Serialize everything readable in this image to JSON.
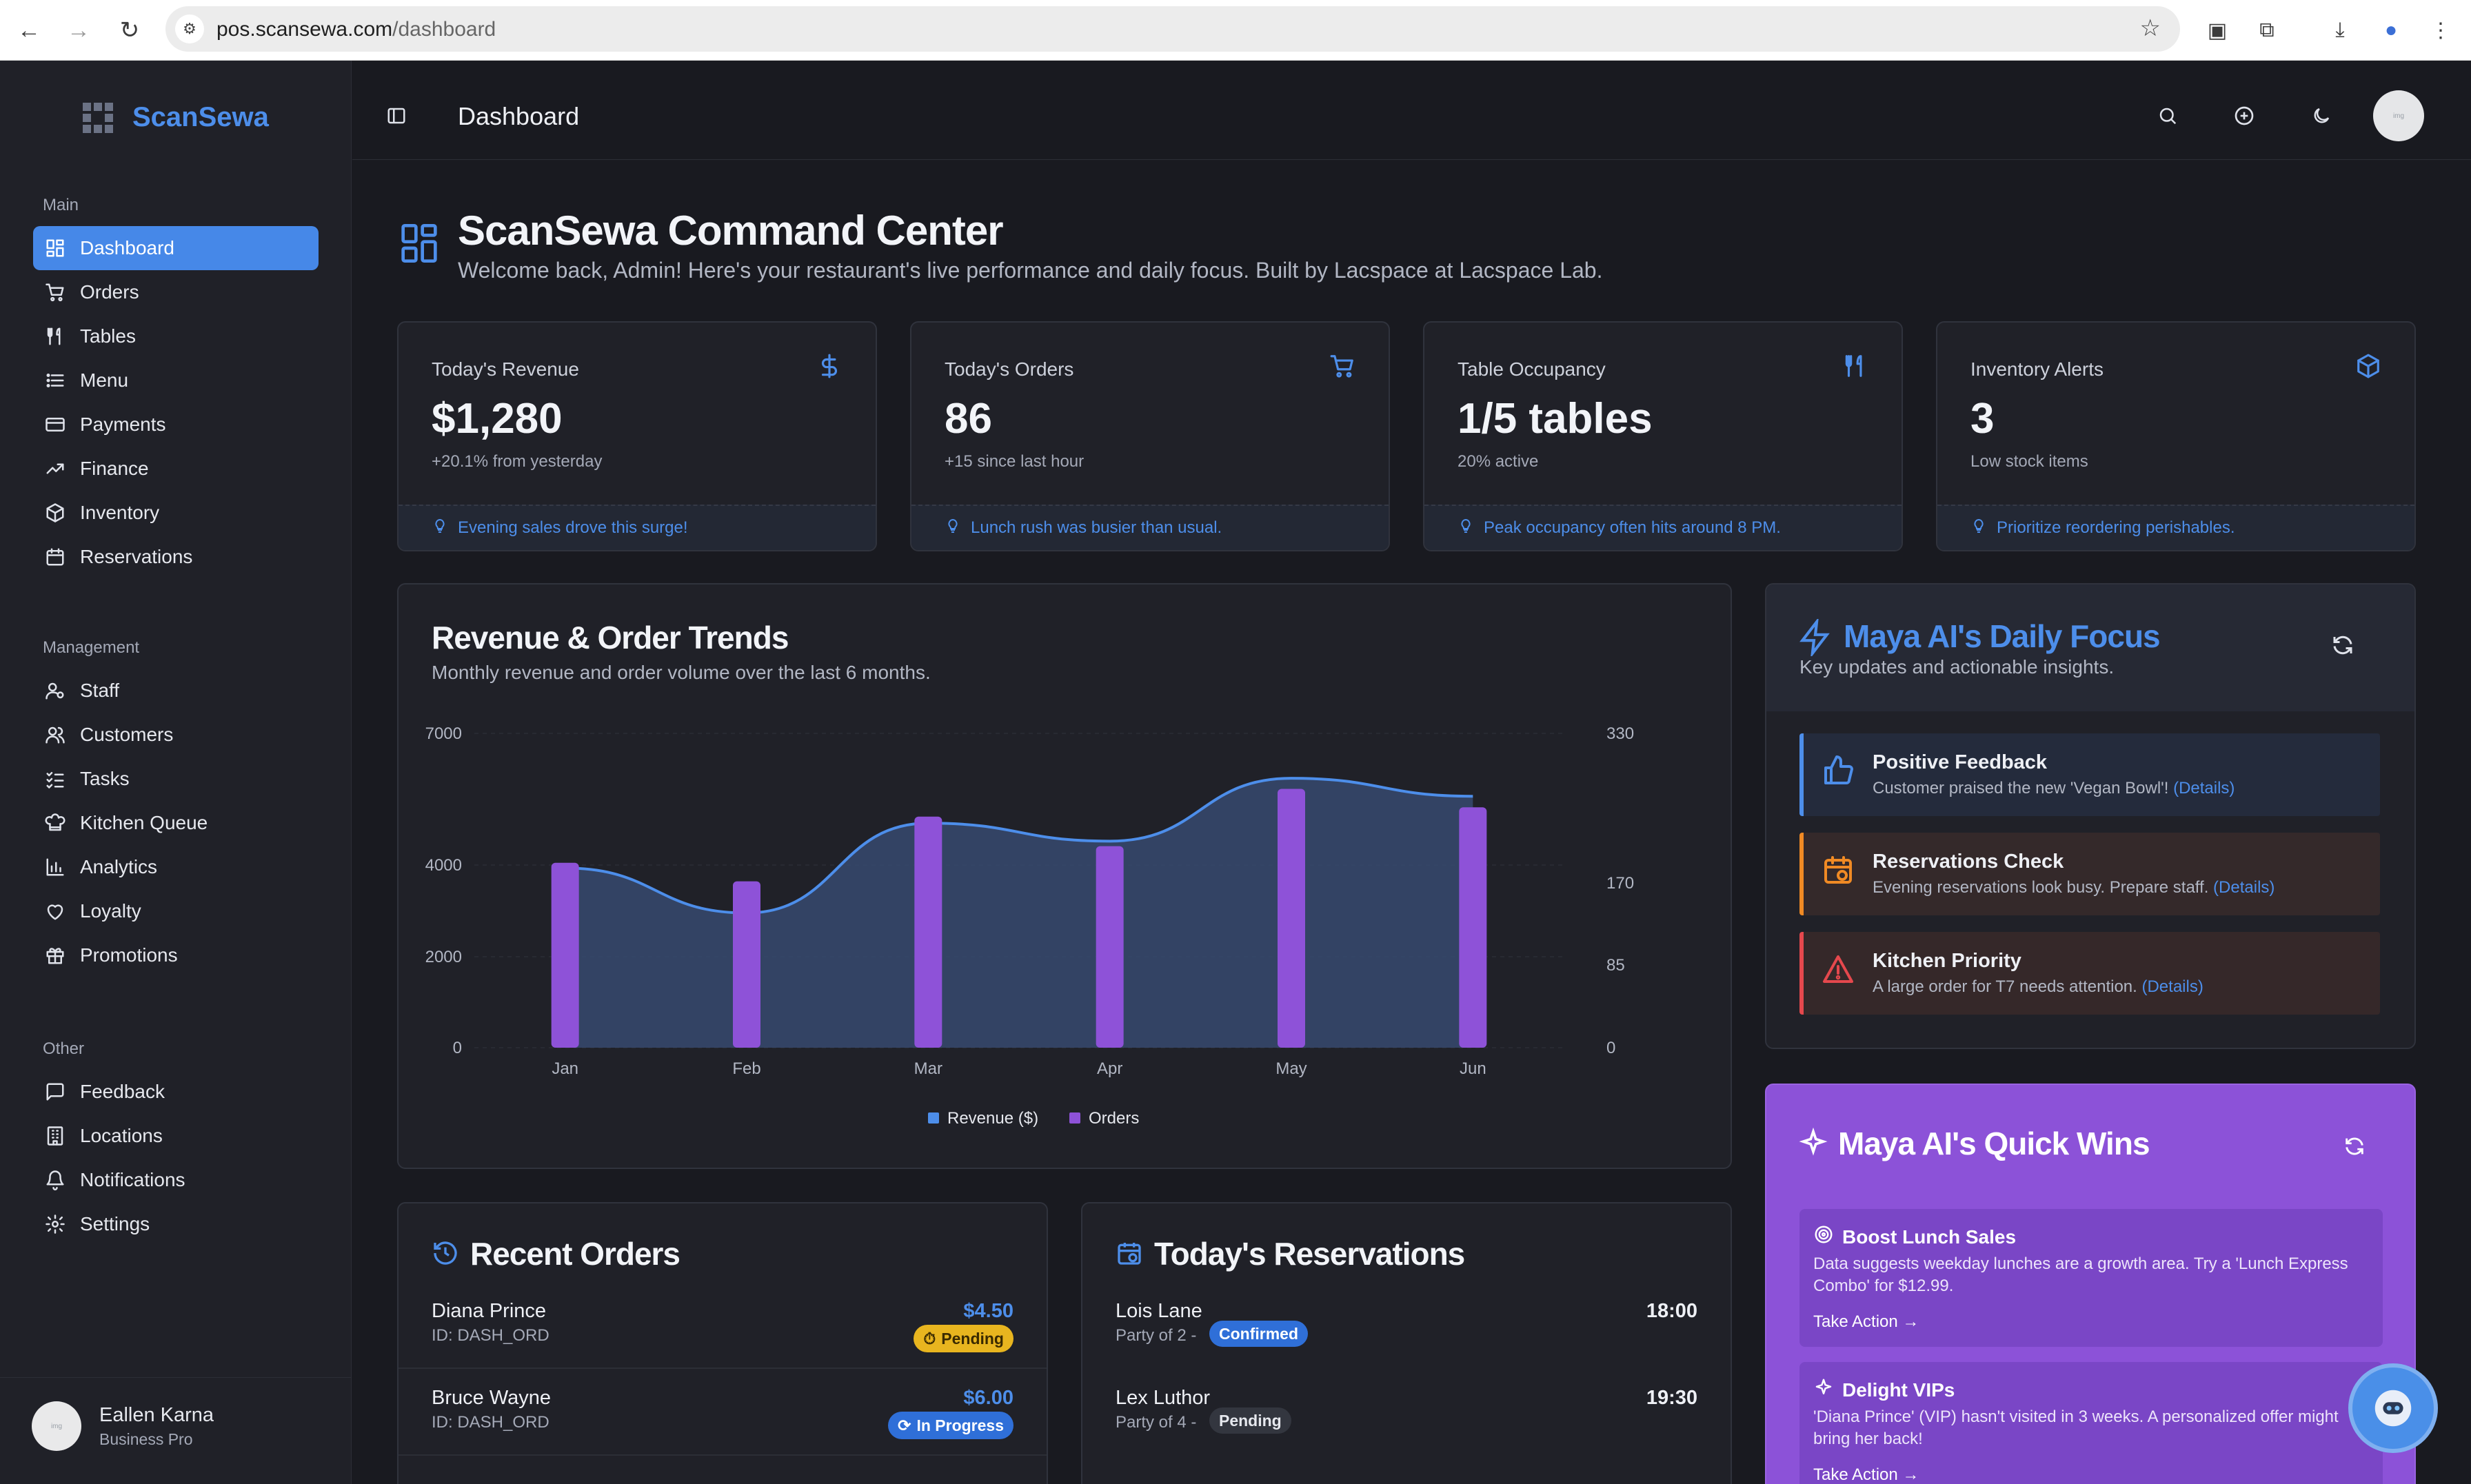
{
  "browser": {
    "url_host": "pos.scansewa.com",
    "url_path": "/dashboard"
  },
  "brand": {
    "name": "ScanSewa"
  },
  "sidebar": {
    "sections": [
      {
        "title": "Main",
        "items": [
          {
            "label": "Dashboard",
            "icon": "grid-icon"
          },
          {
            "label": "Orders",
            "icon": "cart-icon"
          },
          {
            "label": "Tables",
            "icon": "utensils-icon"
          },
          {
            "label": "Menu",
            "icon": "list-icon"
          },
          {
            "label": "Payments",
            "icon": "credit-card-icon"
          },
          {
            "label": "Finance",
            "icon": "trending-up-icon"
          },
          {
            "label": "Inventory",
            "icon": "box-icon"
          },
          {
            "label": "Reservations",
            "icon": "calendar-icon"
          }
        ]
      },
      {
        "title": "Management",
        "items": [
          {
            "label": "Staff",
            "icon": "user-cog-icon"
          },
          {
            "label": "Customers",
            "icon": "users-icon"
          },
          {
            "label": "Tasks",
            "icon": "checklist-icon"
          },
          {
            "label": "Kitchen Queue",
            "icon": "chef-hat-icon"
          },
          {
            "label": "Analytics",
            "icon": "bar-chart-icon"
          },
          {
            "label": "Loyalty",
            "icon": "heart-icon"
          },
          {
            "label": "Promotions",
            "icon": "gift-icon"
          }
        ]
      },
      {
        "title": "Other",
        "items": [
          {
            "label": "Feedback",
            "icon": "message-icon"
          },
          {
            "label": "Locations",
            "icon": "building-icon"
          },
          {
            "label": "Notifications",
            "icon": "bell-icon"
          },
          {
            "label": "Settings",
            "icon": "gear-icon"
          }
        ]
      }
    ],
    "profile": {
      "name": "Eallen Karna",
      "role": "Business Pro"
    }
  },
  "header": {
    "title": "Dashboard"
  },
  "hero": {
    "title": "ScanSewa Command Center",
    "subtitle": "Welcome back, Admin! Here's your restaurant's live performance and daily focus. Built by Lacspace at Lacspace Lab."
  },
  "kpis": [
    {
      "label": "Today's Revenue",
      "value": "$1,280",
      "change": "+20.1% from yesterday",
      "tip": "Evening sales drove this surge!",
      "icon": "dollar-icon"
    },
    {
      "label": "Today's Orders",
      "value": "86",
      "change": "+15 since last hour",
      "tip": "Lunch rush was busier than usual.",
      "icon": "cart-icon"
    },
    {
      "label": "Table Occupancy",
      "value": "1/5 tables",
      "change": "20% active",
      "tip": "Peak occupancy often hits around 8 PM.",
      "icon": "utensils-icon"
    },
    {
      "label": "Inventory Alerts",
      "value": "3",
      "change": "Low stock items",
      "tip": "Prioritize reordering perishables.",
      "icon": "box-icon"
    }
  ],
  "trends": {
    "title": "Revenue & Order Trends",
    "subtitle": "Monthly revenue and order volume over the last 6 months."
  },
  "chart_data": {
    "type": "bar",
    "categories": [
      "Jan",
      "Feb",
      "Mar",
      "Apr",
      "May",
      "Jun"
    ],
    "series": [
      {
        "name": "Revenue ($)",
        "type": "area",
        "axis": "left",
        "values": [
          4000,
          3000,
          5000,
          4600,
          6000,
          5600
        ],
        "color": "#4d8eea"
      },
      {
        "name": "Orders",
        "type": "bar",
        "axis": "right",
        "values": [
          200,
          180,
          250,
          218,
          280,
          260
        ],
        "color": "#8e52d8"
      }
    ],
    "y_left": {
      "ticks": [
        0,
        2000,
        4000,
        7000
      ],
      "range": [
        0,
        7000
      ]
    },
    "y_right": {
      "ticks": [
        0,
        85,
        170,
        330
      ],
      "range": [
        0,
        340
      ]
    },
    "grid": true,
    "legend": "bottom"
  },
  "focus": {
    "title": "Maya AI's Daily Focus",
    "subtitle": "Key updates and actionable insights.",
    "items": [
      {
        "title": "Positive Feedback",
        "desc": "Customer praised the new 'Vegan Bowl'!",
        "link": "(Details)",
        "icon": "thumbs-up-icon",
        "color": "#4d8eea"
      },
      {
        "title": "Reservations Check",
        "desc": "Evening reservations look busy. Prepare staff.",
        "link": "(Details)",
        "icon": "calendar-clock-icon",
        "color": "#f08a24"
      },
      {
        "title": "Kitchen Priority",
        "desc": "A large order for T7 needs attention.",
        "link": "(Details)",
        "icon": "alert-triangle-icon",
        "color": "#e5484d"
      }
    ]
  },
  "quick_wins": {
    "title": "Maya AI's Quick Wins",
    "items": [
      {
        "title": "Boost Lunch Sales",
        "desc": "Data suggests weekday lunches are a growth area. Try a 'Lunch Express Combo' for $12.99.",
        "action": "Take Action →",
        "icon": "target-icon"
      },
      {
        "title": "Delight VIPs",
        "desc": "'Diana Prince' (VIP) hasn't visited in 3 weeks. A personalized offer might bring her back!",
        "action": "Take Action →",
        "icon": "sparkles-icon"
      }
    ]
  },
  "recent_orders": {
    "title": "Recent Orders",
    "rows": [
      {
        "name": "Diana Prince",
        "id": "ID: DASH_ORD",
        "amount": "$4.50",
        "status": "Pending"
      },
      {
        "name": "Bruce Wayne",
        "id": "ID: DASH_ORD",
        "amount": "$6.00",
        "status": "In Progress"
      }
    ]
  },
  "reservations": {
    "title": "Today's Reservations",
    "rows": [
      {
        "name": "Lois Lane",
        "party": "Party of 2 -",
        "time": "18:00",
        "status": "Confirmed"
      },
      {
        "name": "Lex Luthor",
        "party": "Party of 4 -",
        "time": "19:30",
        "status": "Pending"
      }
    ]
  },
  "colors": {
    "accent": "#4d8eea",
    "background": "#191a20",
    "panel": "#202128",
    "bar": "#8e52d8",
    "quick_wins_bg": "#8c52d8"
  }
}
